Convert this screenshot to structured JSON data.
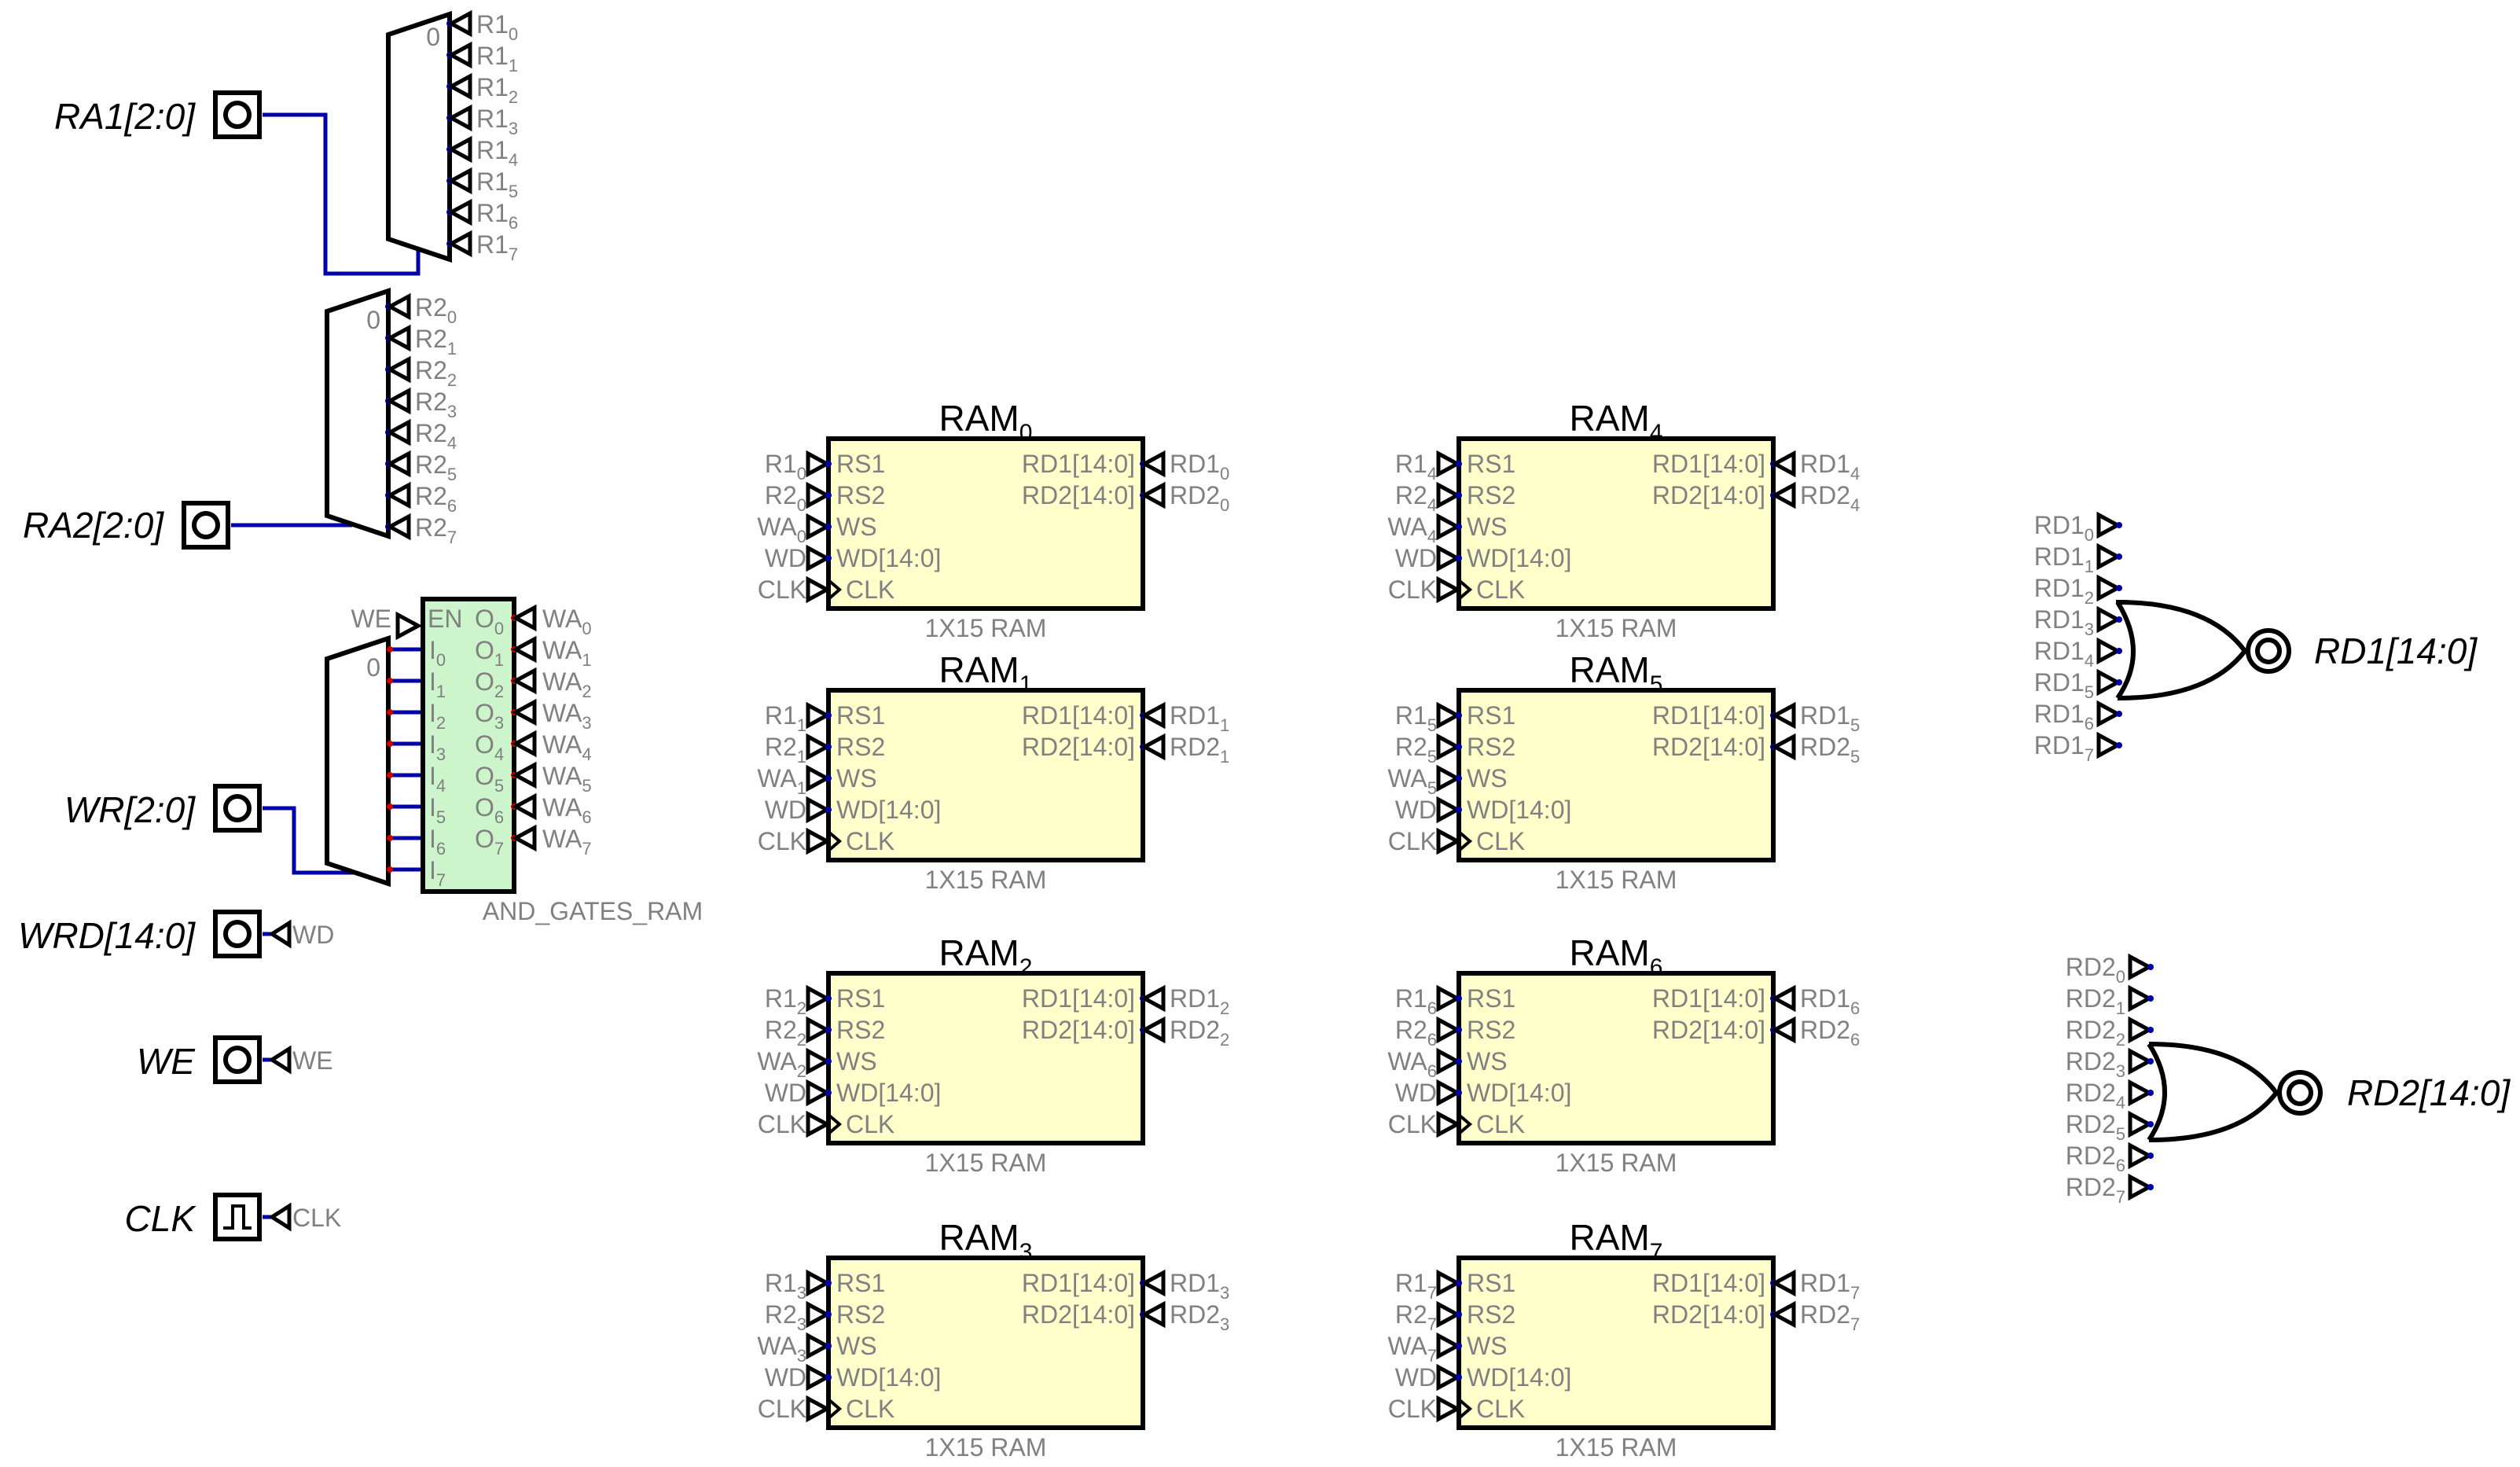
{
  "inputs": {
    "ra1": "RA1[2:0]",
    "ra2": "RA2[2:0]",
    "wr": "WR[2:0]",
    "wrd": "WRD[14:0]",
    "we": "WE",
    "clk": "CLK",
    "wrd_tag": "WD",
    "we_tag": "WE",
    "clk_tag": "CLK"
  },
  "outputs": {
    "rd1": "RD1[14:0]",
    "rd2": "RD2[14:0]"
  },
  "mux_zero": "0",
  "decoder": {
    "label": "AND_GATES_RAM",
    "en_pin": "EN",
    "we_tag": "WE",
    "in_prefix": "I",
    "out_prefix": "O",
    "wa_prefix": "WA"
  },
  "ram": {
    "title_base": "RAM",
    "subtitle": "1X15  RAM",
    "ports_in": [
      "RS1",
      "RS2",
      "WS",
      "WD[14:0]",
      "CLK"
    ],
    "ports_out": [
      "RD1[14:0]",
      "RD2[14:0]"
    ],
    "ext_in": [
      "R1",
      "R2",
      "WA",
      "WD",
      "CLK"
    ],
    "ext_out": [
      "RD1",
      "RD2"
    ]
  },
  "mux_r1_prefix": "R1",
  "mux_r2_prefix": "R2",
  "or_rd1_prefix": "RD1",
  "or_rd2_prefix": "RD2",
  "colors": {
    "bus": "#0000aa",
    "ram_fill": "#ffffcc",
    "decoder_fill": "#ccf5cc",
    "label_grey": "#808080",
    "pin_red": "#cc0000"
  }
}
